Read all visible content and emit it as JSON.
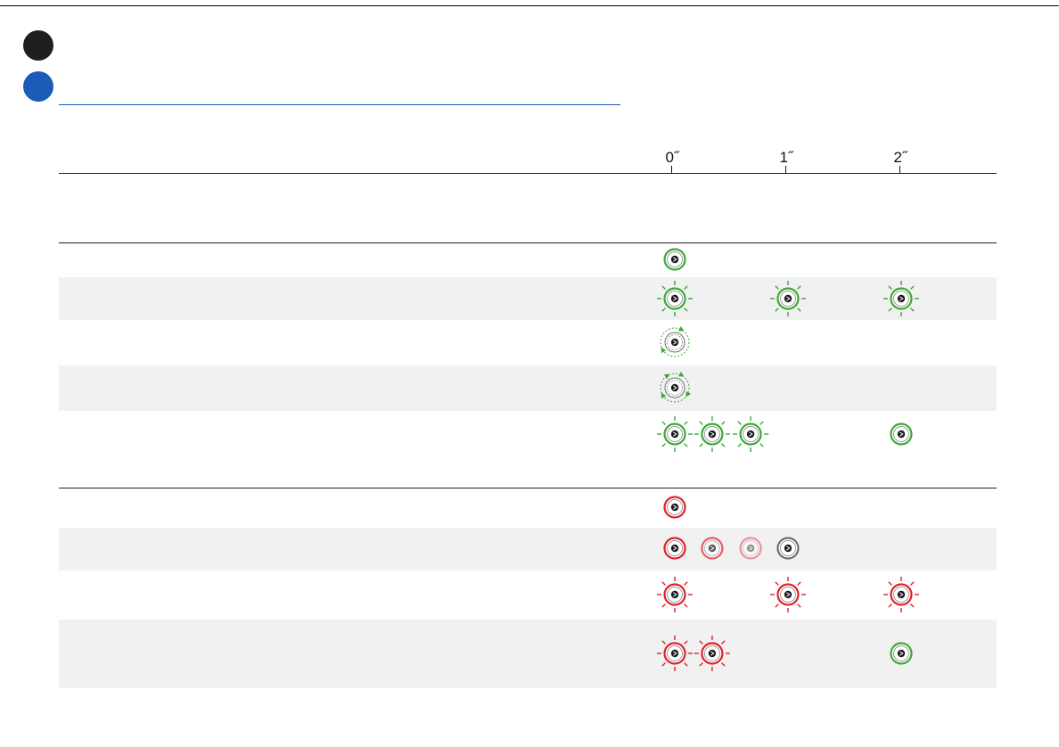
{
  "colors": {
    "green": "#3aa935",
    "red": "#e0202e",
    "gray": "#6e6e6e",
    "blue": "#1a5cb8",
    "shade": "#f1f1f1"
  },
  "timeline": {
    "ticks": [
      "0˝",
      "1˝",
      "2˝"
    ]
  },
  "rows": [
    {
      "icons": [
        {
          "t": 0,
          "type": "solid",
          "color": "green"
        }
      ]
    },
    {
      "icons": [
        {
          "t": 0,
          "type": "flash",
          "color": "green"
        },
        {
          "t": 1,
          "type": "flash",
          "color": "green"
        },
        {
          "t": 2,
          "type": "flash",
          "color": "green"
        }
      ]
    },
    {
      "icons": [
        {
          "t": 0,
          "type": "rotate-cw",
          "color": "green"
        }
      ]
    },
    {
      "icons": [
        {
          "t": 0,
          "type": "rotate-both",
          "color": "green"
        }
      ]
    },
    {
      "icons": [
        {
          "t": 0,
          "type": "flash",
          "color": "green"
        },
        {
          "t": 0.33,
          "type": "flash",
          "color": "green"
        },
        {
          "t": 0.67,
          "type": "flash",
          "color": "green"
        },
        {
          "t": 2,
          "type": "solid",
          "color": "green"
        }
      ]
    },
    {
      "icons": [
        {
          "t": 0,
          "type": "solid",
          "color": "red"
        }
      ]
    },
    {
      "icons": [
        {
          "t": 0,
          "type": "solid",
          "color": "red",
          "fade": 1
        },
        {
          "t": 0.33,
          "type": "solid",
          "color": "red",
          "fade": 0.7
        },
        {
          "t": 0.67,
          "type": "solid",
          "color": "red",
          "fade": 0.45
        },
        {
          "t": 1,
          "type": "solid",
          "color": "gray",
          "fade": 1
        }
      ]
    },
    {
      "icons": [
        {
          "t": 0,
          "type": "flash",
          "color": "red"
        },
        {
          "t": 1,
          "type": "flash",
          "color": "red"
        },
        {
          "t": 2,
          "type": "flash",
          "color": "red"
        }
      ]
    },
    {
      "icons": [
        {
          "t": 0,
          "type": "flash",
          "color": "red"
        },
        {
          "t": 0.33,
          "type": "flash",
          "color": "red"
        },
        {
          "t": 2,
          "type": "solid",
          "color": "green"
        }
      ]
    }
  ]
}
